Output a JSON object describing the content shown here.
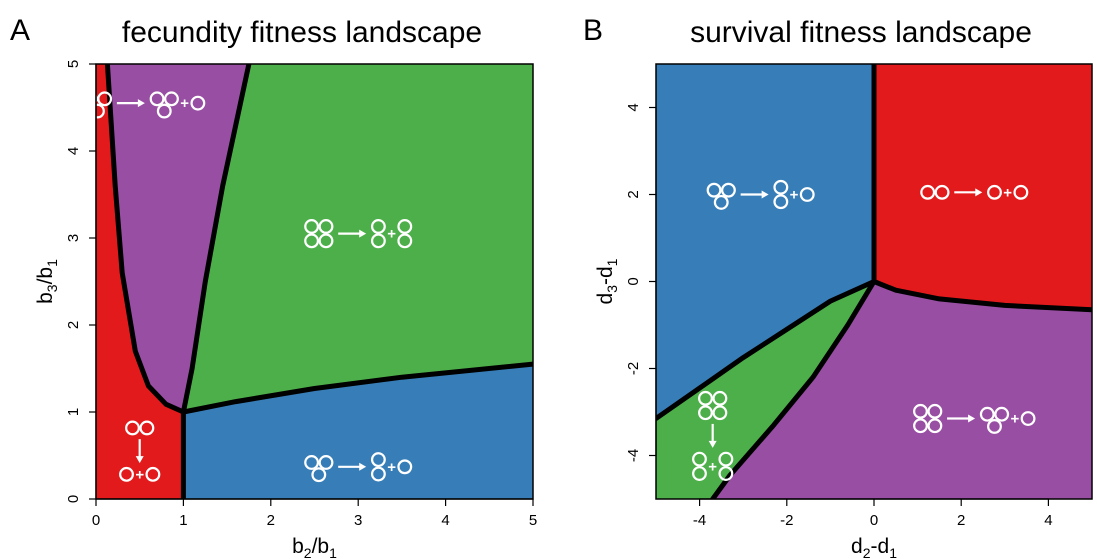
{
  "chart_data": [
    {
      "type": "area",
      "panel": "A",
      "title": "fecundity fitness landscape",
      "xlabel": {
        "base": "b",
        "sub": "2",
        "slash": "/",
        "base2": "b",
        "sub2": "1"
      },
      "ylabel": {
        "base": "b",
        "sub": "3",
        "slash": "/",
        "base2": "b",
        "sub2": "1"
      },
      "xlim": [
        0,
        5
      ],
      "ylim": [
        0,
        5
      ],
      "xticks": [
        "0",
        "1",
        "2",
        "3",
        "4",
        "5"
      ],
      "yticks": [
        "0",
        "1",
        "2",
        "3",
        "4",
        "5"
      ],
      "grid": false,
      "colors": {
        "red": "#e31a1c",
        "purple": "#984ea3",
        "green": "#4daf4a",
        "blue": "#377eb8"
      },
      "regions": [
        {
          "color": "red",
          "polygon": [
            [
              0,
              0
            ],
            [
              1,
              0
            ],
            [
              1,
              1
            ],
            [
              0.8,
              1.09
            ],
            [
              0.6,
              1.3
            ],
            [
              0.45,
              1.7
            ],
            [
              0.3,
              2.6
            ],
            [
              0.22,
              3.6
            ],
            [
              0.13,
              5
            ],
            [
              0,
              5
            ]
          ]
        },
        {
          "color": "purple",
          "polygon": [
            [
              0.13,
              5
            ],
            [
              0.22,
              3.6
            ],
            [
              0.3,
              2.6
            ],
            [
              0.45,
              1.7
            ],
            [
              0.6,
              1.3
            ],
            [
              0.8,
              1.09
            ],
            [
              1,
              1
            ],
            [
              1.1,
              1.5
            ],
            [
              1.25,
              2.5
            ],
            [
              1.45,
              3.6
            ],
            [
              1.75,
              5
            ]
          ]
        },
        {
          "color": "green",
          "polygon": [
            [
              1.75,
              5
            ],
            [
              1.45,
              3.6
            ],
            [
              1.25,
              2.5
            ],
            [
              1.1,
              1.5
            ],
            [
              1,
              1
            ],
            [
              1.6,
              1.12
            ],
            [
              2.5,
              1.27
            ],
            [
              3.5,
              1.4
            ],
            [
              5,
              1.55
            ],
            [
              5,
              5
            ]
          ]
        },
        {
          "color": "blue",
          "polygon": [
            [
              1,
              0
            ],
            [
              5,
              0
            ],
            [
              5,
              1.55
            ],
            [
              3.5,
              1.4
            ],
            [
              2.5,
              1.27
            ],
            [
              1.6,
              1.12
            ],
            [
              1,
              1
            ]
          ]
        }
      ],
      "boundaries": [
        [
          [
            0.13,
            5
          ],
          [
            0.22,
            3.6
          ],
          [
            0.3,
            2.6
          ],
          [
            0.45,
            1.7
          ],
          [
            0.6,
            1.3
          ],
          [
            0.8,
            1.09
          ],
          [
            1,
            1
          ]
        ],
        [
          [
            1,
            1
          ],
          [
            1.1,
            1.5
          ],
          [
            1.25,
            2.5
          ],
          [
            1.45,
            3.6
          ],
          [
            1.75,
            5
          ]
        ],
        [
          [
            1,
            1
          ],
          [
            1.6,
            1.12
          ],
          [
            2.5,
            1.27
          ],
          [
            3.5,
            1.4
          ],
          [
            5,
            1.55
          ]
        ],
        [
          [
            1,
            0
          ],
          [
            1,
            1
          ]
        ]
      ],
      "annotations": [
        {
          "region": "purple",
          "x": 0.55,
          "y": 4.55,
          "lhs": "tri",
          "rhs": [
            "tri-down",
            "one"
          ],
          "vertical": false
        },
        {
          "region": "green",
          "x": 3.0,
          "y": 3.05,
          "lhs": "quad",
          "rhs": [
            "two-v",
            "two-v"
          ],
          "vertical": false
        },
        {
          "region": "blue",
          "x": 3.0,
          "y": 0.37,
          "lhs": "tri",
          "rhs": [
            "two-v",
            "one"
          ],
          "vertical": false
        },
        {
          "region": "red",
          "x": 0.5,
          "y": 0.55,
          "lhs": "two-h",
          "rhs": [
            "one",
            "one"
          ],
          "vertical": true
        }
      ]
    },
    {
      "type": "area",
      "panel": "B",
      "title": "survival fitness landscape",
      "xlabel": {
        "base": "d",
        "sub": "2",
        "slash": "-",
        "base2": "d",
        "sub2": "1"
      },
      "ylabel": {
        "base": "d",
        "sub": "3",
        "slash": "-",
        "base2": "d",
        "sub2": "1"
      },
      "xlim": [
        -5,
        5
      ],
      "ylim": [
        -5,
        5
      ],
      "xticks": [
        "-4",
        "-2",
        "0",
        "2",
        "4"
      ],
      "yticks": [
        "-4",
        "-2",
        "0",
        "2",
        "4"
      ],
      "grid": false,
      "colors": {
        "red": "#e31a1c",
        "purple": "#984ea3",
        "green": "#4daf4a",
        "blue": "#377eb8"
      },
      "regions": [
        {
          "color": "blue",
          "polygon": [
            [
              -5,
              5
            ],
            [
              0,
              5
            ],
            [
              0,
              0
            ],
            [
              -1,
              -0.45
            ],
            [
              -2,
              -1.1
            ],
            [
              -3,
              -1.75
            ],
            [
              -4,
              -2.45
            ],
            [
              -5,
              -3.15
            ]
          ]
        },
        {
          "color": "red",
          "polygon": [
            [
              0,
              5
            ],
            [
              5,
              5
            ],
            [
              5,
              -0.65
            ],
            [
              3,
              -0.55
            ],
            [
              1.5,
              -0.4
            ],
            [
              0.5,
              -0.2
            ],
            [
              0,
              0
            ]
          ]
        },
        {
          "color": "green",
          "polygon": [
            [
              -5,
              -3.15
            ],
            [
              -4,
              -2.45
            ],
            [
              -3,
              -1.75
            ],
            [
              -2,
              -1.1
            ],
            [
              -1,
              -0.45
            ],
            [
              0,
              0
            ],
            [
              -0.6,
              -1.0
            ],
            [
              -1.4,
              -2.2
            ],
            [
              -2.3,
              -3.3
            ],
            [
              -3.3,
              -4.45
            ],
            [
              -3.7,
              -5
            ],
            [
              -5,
              -5
            ]
          ]
        },
        {
          "color": "purple",
          "polygon": [
            [
              -3.7,
              -5
            ],
            [
              -3.3,
              -4.45
            ],
            [
              -2.3,
              -3.3
            ],
            [
              -1.4,
              -2.2
            ],
            [
              -0.6,
              -1.0
            ],
            [
              0,
              0
            ],
            [
              0.5,
              -0.2
            ],
            [
              1.5,
              -0.4
            ],
            [
              3,
              -0.55
            ],
            [
              5,
              -0.65
            ],
            [
              5,
              -5
            ]
          ]
        }
      ],
      "boundaries": [
        [
          [
            0,
            5
          ],
          [
            0,
            0
          ]
        ],
        [
          [
            0,
            0
          ],
          [
            0.5,
            -0.2
          ],
          [
            1.5,
            -0.4
          ],
          [
            3,
            -0.55
          ],
          [
            5,
            -0.65
          ]
        ],
        [
          [
            -5,
            -3.15
          ],
          [
            -4,
            -2.45
          ],
          [
            -3,
            -1.75
          ],
          [
            -2,
            -1.1
          ],
          [
            -1,
            -0.45
          ],
          [
            0,
            0
          ]
        ],
        [
          [
            0,
            0
          ],
          [
            -0.6,
            -1.0
          ],
          [
            -1.4,
            -2.2
          ],
          [
            -2.3,
            -3.3
          ],
          [
            -3.3,
            -4.45
          ],
          [
            -3.7,
            -5
          ]
        ]
      ],
      "annotations": [
        {
          "region": "blue",
          "x": -2.6,
          "y": 2.0,
          "lhs": "tri",
          "rhs": [
            "two-v",
            "one"
          ],
          "vertical": false
        },
        {
          "region": "red",
          "x": 2.3,
          "y": 2.05,
          "lhs": "two-h",
          "rhs": [
            "one",
            "one"
          ],
          "vertical": false
        },
        {
          "region": "purple",
          "x": 2.3,
          "y": -3.15,
          "lhs": "quad",
          "rhs": [
            "tri-down",
            "one"
          ],
          "vertical": false
        },
        {
          "region": "green",
          "x": -3.7,
          "y": -3.55,
          "lhs": "quad",
          "rhs": [
            "two-v",
            "two-v"
          ],
          "vertical": true
        }
      ]
    }
  ]
}
